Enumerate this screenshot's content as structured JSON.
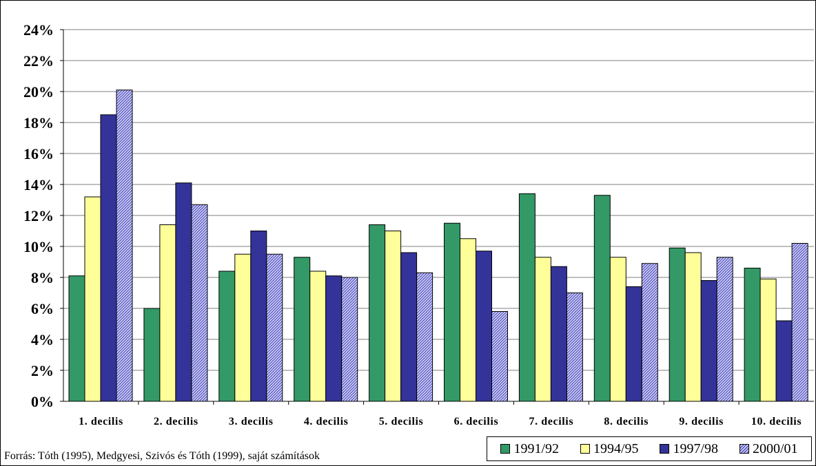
{
  "chart_data": {
    "type": "bar",
    "title": "",
    "xlabel": "",
    "ylabel": "",
    "categories": [
      "1. decilis",
      "2. decilis",
      "3. decilis",
      "4. decilis",
      "5. decilis",
      "6. decilis",
      "7. decilis",
      "8. decilis",
      "9. decilis",
      "10. decilis"
    ],
    "series": [
      {
        "name": "1991/92",
        "color": "#339966",
        "values": [
          8.1,
          6.0,
          8.4,
          9.3,
          11.4,
          11.5,
          13.4,
          13.3,
          9.9,
          8.6
        ]
      },
      {
        "name": "1994/95",
        "color": "#FFFF99",
        "values": [
          13.2,
          11.4,
          9.5,
          8.4,
          11.0,
          10.5,
          9.3,
          9.3,
          9.6,
          7.9
        ]
      },
      {
        "name": "1997/98",
        "color": "#333399",
        "values": [
          18.5,
          14.1,
          11.0,
          8.1,
          9.6,
          9.7,
          8.7,
          7.4,
          7.8,
          5.2
        ]
      },
      {
        "name": "2000/01",
        "color": "#CCCCFF",
        "pattern": "diagonal-hatch",
        "values": [
          20.1,
          12.7,
          9.5,
          8.0,
          8.3,
          5.8,
          7.0,
          8.9,
          9.3,
          10.2
        ]
      }
    ],
    "ylim": [
      0,
      24
    ],
    "y_ticks": [
      "0%",
      "2%",
      "4%",
      "6%",
      "8%",
      "10%",
      "12%",
      "14%",
      "16%",
      "18%",
      "20%",
      "22%",
      "24%"
    ],
    "grid": true,
    "legend_position": "bottom-right",
    "plot_background": "#ffffff",
    "outer_background": "#ffffff"
  },
  "source_note": "Forrás: Tóth (1995), Medgyesi, Szivós és Tóth (1999), saját számítások"
}
